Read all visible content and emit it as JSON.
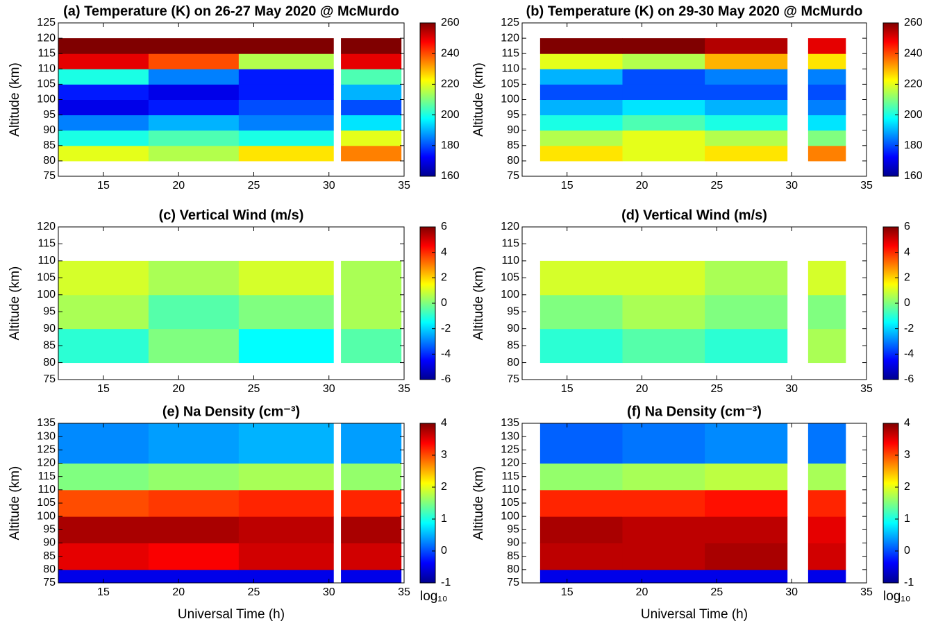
{
  "chart_data": [
    {
      "type": "heatmap",
      "title": "(a) Temperature (K) on 26-27 May 2020 @ McMurdo",
      "ylabel": "Altitude (km)",
      "colormap": "jet",
      "x_bins": [
        12,
        18,
        24,
        30.3,
        30.8,
        34.8
      ],
      "y_bins": [
        80,
        85,
        90,
        95,
        100,
        105,
        110,
        115,
        120
      ],
      "z": [
        [
          220,
          215,
          225,
          null,
          235
        ],
        [
          200,
          205,
          200,
          null,
          220
        ],
        [
          185,
          190,
          185,
          null,
          195
        ],
        [
          170,
          175,
          180,
          null,
          180
        ],
        [
          175,
          170,
          175,
          null,
          190
        ],
        [
          200,
          185,
          175,
          null,
          205
        ],
        [
          250,
          240,
          215,
          null,
          250
        ],
        [
          260,
          260,
          260,
          null,
          260
        ]
      ],
      "xlim": [
        12,
        35
      ],
      "xticks": [
        15,
        20,
        25,
        30,
        35
      ],
      "ylim": [
        75,
        125
      ],
      "yticks": [
        75,
        80,
        85,
        90,
        95,
        100,
        105,
        110,
        115,
        120,
        125
      ],
      "clim": [
        160,
        260
      ],
      "cticks": [
        160,
        180,
        200,
        220,
        240,
        260
      ]
    },
    {
      "type": "heatmap",
      "title": "(b) Temperature (K) on 29-30 May 2020 @ McMurdo",
      "ylabel": "Altitude (km)",
      "colormap": "jet",
      "x_bins": [
        13.2,
        18.7,
        24.2,
        29.7,
        31.1,
        33.6
      ],
      "y_bins": [
        80,
        85,
        90,
        95,
        100,
        105,
        110,
        115,
        120
      ],
      "z": [
        [
          225,
          220,
          225,
          null,
          235
        ],
        [
          215,
          220,
          215,
          null,
          210
        ],
        [
          200,
          205,
          200,
          null,
          195
        ],
        [
          190,
          195,
          190,
          null,
          185
        ],
        [
          180,
          180,
          180,
          null,
          180
        ],
        [
          190,
          180,
          185,
          null,
          185
        ],
        [
          220,
          215,
          230,
          null,
          225
        ],
        [
          260,
          260,
          255,
          null,
          250
        ]
      ],
      "xlim": [
        12,
        35
      ],
      "xticks": [
        15,
        20,
        25,
        30,
        35
      ],
      "ylim": [
        75,
        125
      ],
      "yticks": [
        75,
        80,
        85,
        90,
        95,
        100,
        105,
        110,
        115,
        120,
        125
      ],
      "clim": [
        160,
        260
      ],
      "cticks": [
        160,
        180,
        200,
        220,
        240,
        260
      ]
    },
    {
      "type": "heatmap",
      "title": "(c) Vertical Wind (m/s)",
      "ylabel": "Altitude (km)",
      "colormap": "jet",
      "x_bins": [
        12,
        18,
        24,
        30.3,
        30.8,
        34.8
      ],
      "y_bins": [
        80,
        90,
        100,
        110
      ],
      "z": [
        [
          -1,
          0,
          -1.5,
          null,
          -0.5
        ],
        [
          0.5,
          -0.5,
          0,
          null,
          0.5
        ],
        [
          1,
          0.5,
          1,
          null,
          0.5
        ]
      ],
      "xlim": [
        12,
        35
      ],
      "xticks": [
        15,
        20,
        25,
        30,
        35
      ],
      "ylim": [
        75,
        120
      ],
      "yticks": [
        75,
        80,
        85,
        90,
        95,
        100,
        105,
        110,
        115,
        120
      ],
      "clim": [
        -6,
        6
      ],
      "cticks": [
        -6,
        -4,
        -2,
        0,
        2,
        4,
        6
      ]
    },
    {
      "type": "heatmap",
      "title": "(d) Vertical Wind (m/s)",
      "ylabel": "Altitude (km)",
      "colormap": "jet",
      "x_bins": [
        13.2,
        18.7,
        24.2,
        29.7,
        31.1,
        33.6
      ],
      "y_bins": [
        80,
        90,
        100,
        110
      ],
      "z": [
        [
          -1,
          -0.5,
          -1,
          null,
          0.5
        ],
        [
          0,
          0.5,
          0,
          null,
          0
        ],
        [
          1,
          1,
          0.5,
          null,
          1
        ]
      ],
      "xlim": [
        12,
        35
      ],
      "xticks": [
        15,
        20,
        25,
        30,
        35
      ],
      "ylim": [
        75,
        120
      ],
      "yticks": [
        75,
        80,
        85,
        90,
        95,
        100,
        105,
        110,
        115,
        120
      ],
      "clim": [
        -6,
        6
      ],
      "cticks": [
        -6,
        -4,
        -2,
        0,
        2,
        4,
        6
      ]
    },
    {
      "type": "heatmap",
      "title": "(e) Na Density (cm⁻³)",
      "xlabel": "Universal Time (h)",
      "ylabel": "Altitude (km)",
      "colormap": "jet",
      "colorbar_label": "log₁₀",
      "x_bins": [
        12,
        18,
        24,
        30.3,
        30.8,
        34.8
      ],
      "y_bins": [
        75,
        80,
        90,
        100,
        110,
        120,
        135
      ],
      "z": [
        [
          -0.5,
          -0.5,
          -0.5,
          null,
          -0.5
        ],
        [
          3.5,
          3.4,
          3.6,
          null,
          3.6
        ],
        [
          3.8,
          3.8,
          3.7,
          null,
          3.8
        ],
        [
          3,
          3.1,
          3.2,
          null,
          3.2
        ],
        [
          1.5,
          1.6,
          1.7,
          null,
          1.6
        ],
        [
          0.3,
          0.4,
          0.5,
          null,
          0.4
        ]
      ],
      "xlim": [
        12,
        35
      ],
      "xticks": [
        15,
        20,
        25,
        30,
        35
      ],
      "ylim": [
        75,
        135
      ],
      "yticks": [
        75,
        80,
        85,
        90,
        95,
        100,
        105,
        110,
        115,
        120,
        125,
        130,
        135
      ],
      "clim": [
        -1,
        4
      ],
      "cticks": [
        -1,
        0,
        1,
        2,
        3,
        4
      ]
    },
    {
      "type": "heatmap",
      "title": "(f) Na Density (cm⁻³)",
      "xlabel": "Universal Time (h)",
      "ylabel": "Altitude (km)",
      "colormap": "jet",
      "colorbar_label": "log₁₀",
      "x_bins": [
        13.2,
        18.7,
        24.2,
        29.7,
        31.1,
        33.6
      ],
      "y_bins": [
        75,
        80,
        90,
        100,
        110,
        120,
        135
      ],
      "z": [
        [
          -0.5,
          -0.5,
          -0.5,
          null,
          -0.5
        ],
        [
          3.7,
          3.7,
          3.8,
          null,
          3.6
        ],
        [
          3.8,
          3.7,
          3.7,
          null,
          3.5
        ],
        [
          3.2,
          3.2,
          3.3,
          null,
          3.2
        ],
        [
          1.6,
          1.7,
          1.8,
          null,
          1.7
        ],
        [
          0.1,
          0.2,
          0.3,
          null,
          0.2
        ]
      ],
      "xlim": [
        12,
        35
      ],
      "xticks": [
        15,
        20,
        25,
        30,
        35
      ],
      "ylim": [
        75,
        135
      ],
      "yticks": [
        75,
        80,
        85,
        90,
        95,
        100,
        105,
        110,
        115,
        120,
        125,
        130,
        135
      ],
      "clim": [
        -1,
        4
      ],
      "cticks": [
        -1,
        0,
        1,
        2,
        3,
        4
      ]
    }
  ]
}
